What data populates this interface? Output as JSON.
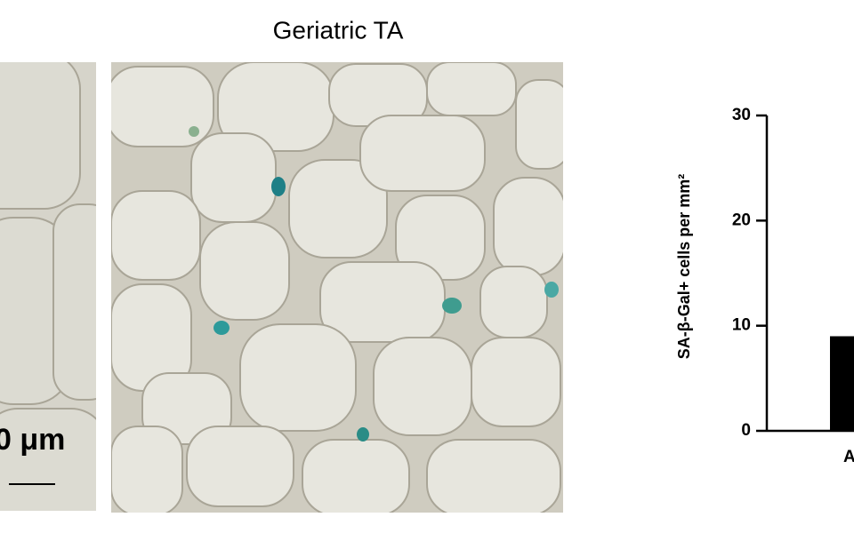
{
  "panel_title": "Geriatric TA",
  "scale_bar_label": "0 μm",
  "chart_data": {
    "type": "bar",
    "y_label": "SA-β-Gal+ cells per mm²",
    "categories": [
      "A"
    ],
    "values": [
      9
    ],
    "color": "#000000",
    "ylim": [
      0,
      30
    ],
    "yticks": [
      0,
      10,
      20,
      30
    ]
  }
}
